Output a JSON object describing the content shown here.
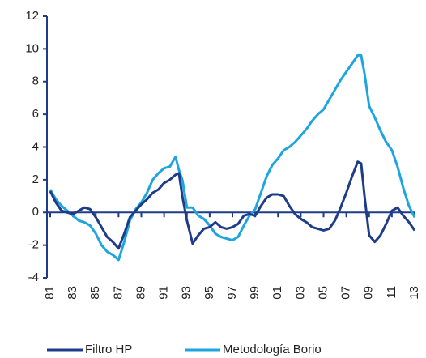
{
  "chart_data": {
    "type": "line",
    "x": [
      1981,
      1981.5,
      1982,
      1982.5,
      1983,
      1983.5,
      1984,
      1984.5,
      1985,
      1985.5,
      1986,
      1986.5,
      1987,
      1987.5,
      1988,
      1988.5,
      1989,
      1989.5,
      1990,
      1990.5,
      1991,
      1991.5,
      1992,
      1992.3,
      1992.6,
      1993,
      1993.5,
      1994,
      1994.5,
      1995,
      1995.5,
      1996,
      1996.5,
      1997,
      1997.5,
      1998,
      1998.5,
      1999,
      1999.5,
      2000,
      2000.5,
      2001,
      2001.5,
      2002,
      2002.5,
      2003,
      2003.5,
      2004,
      2004.5,
      2005,
      2005.5,
      2006,
      2006.5,
      2007,
      2007.5,
      2008,
      2008.3,
      2008.6,
      2009,
      2009.5,
      2010,
      2010.5,
      2011,
      2011.5,
      2012,
      2012.5,
      2013
    ],
    "series": [
      {
        "name": "Filtro HP",
        "color": "#1f3c88",
        "values": [
          1.3,
          0.6,
          0.1,
          0,
          -0.1,
          0.1,
          0.3,
          0.2,
          -0.3,
          -0.9,
          -1.5,
          -1.8,
          -2.2,
          -1.3,
          -0.3,
          0.1,
          0.5,
          0.8,
          1.2,
          1.4,
          1.8,
          2.0,
          2.3,
          2.4,
          1.0,
          -0.5,
          -1.9,
          -1.4,
          -1.0,
          -0.9,
          -0.6,
          -0.9,
          -1.0,
          -0.9,
          -0.7,
          -0.2,
          -0.1,
          -0.2,
          0.4,
          0.9,
          1.1,
          1.1,
          1.0,
          0.4,
          -0.1,
          -0.4,
          -0.6,
          -0.9,
          -1.0,
          -1.1,
          -1.0,
          -0.5,
          0.3,
          1.2,
          2.2,
          3.1,
          3.0,
          1.0,
          -1.4,
          -1.8,
          -1.4,
          -0.7,
          0.1,
          0.3,
          -0.2,
          -0.6,
          -1.1
        ]
      },
      {
        "name": "Metodología Borio",
        "color": "#1ea5e0",
        "values": [
          1.4,
          0.8,
          0.4,
          0.1,
          -0.2,
          -0.5,
          -0.6,
          -0.8,
          -1.3,
          -2.0,
          -2.4,
          -2.6,
          -2.9,
          -1.8,
          -0.5,
          0.2,
          0.6,
          1.2,
          2.0,
          2.4,
          2.7,
          2.8,
          3.4,
          2.6,
          2.0,
          0.3,
          0.3,
          -0.2,
          -0.4,
          -0.8,
          -1.3,
          -1.5,
          -1.6,
          -1.7,
          -1.5,
          -0.8,
          -0.2,
          0.2,
          1.2,
          2.2,
          2.9,
          3.3,
          3.8,
          4.0,
          4.3,
          4.7,
          5.1,
          5.6,
          6.0,
          6.3,
          6.9,
          7.5,
          8.1,
          8.6,
          9.1,
          9.6,
          9.6,
          8.5,
          6.5,
          5.8,
          5.0,
          4.3,
          3.8,
          2.8,
          1.5,
          0.4,
          -0.3
        ]
      }
    ],
    "xlim": [
      1981,
      2013
    ],
    "xticks": [
      {
        "value": 1981,
        "label": "81"
      },
      {
        "value": 1983,
        "label": "83"
      },
      {
        "value": 1985,
        "label": "85"
      },
      {
        "value": 1987,
        "label": "87"
      },
      {
        "value": 1989,
        "label": "89"
      },
      {
        "value": 1991,
        "label": "91"
      },
      {
        "value": 1993,
        "label": "93"
      },
      {
        "value": 1995,
        "label": "95"
      },
      {
        "value": 1997,
        "label": "97"
      },
      {
        "value": 1999,
        "label": "99"
      },
      {
        "value": 2001,
        "label": "01"
      },
      {
        "value": 2003,
        "label": "03"
      },
      {
        "value": 2005,
        "label": "05"
      },
      {
        "value": 2007,
        "label": "07"
      },
      {
        "value": 2009,
        "label": "09"
      },
      {
        "value": 2011,
        "label": "11"
      },
      {
        "value": 2013,
        "label": "13"
      }
    ],
    "ylim": [
      -4,
      12
    ],
    "yticks": [
      -4,
      -2,
      0,
      2,
      4,
      6,
      8,
      10,
      12
    ],
    "legend": "bottom"
  }
}
